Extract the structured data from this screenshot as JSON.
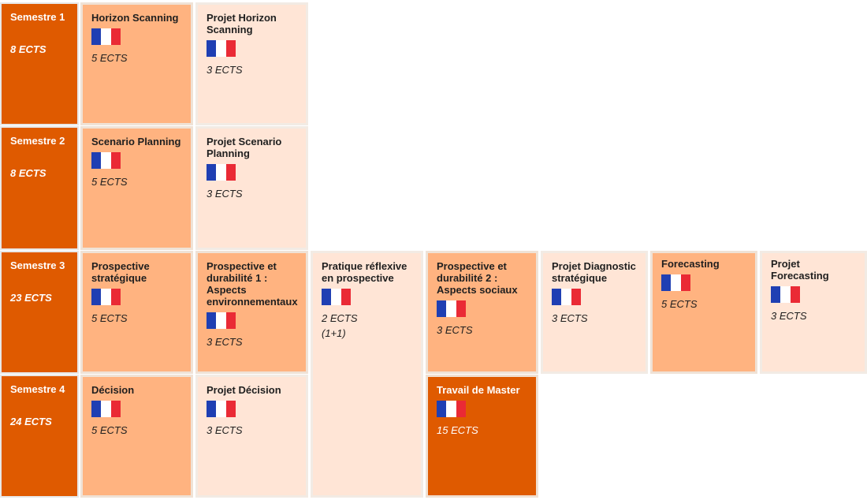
{
  "semesters": [
    {
      "title": "Semestre 1",
      "ects": "8 ECTS"
    },
    {
      "title": "Semestre 2",
      "ects": "8 ECTS"
    },
    {
      "title": "Semestre 3",
      "ects": "23 ECTS"
    },
    {
      "title": "Semestre 4",
      "ects": "24 ECTS"
    }
  ],
  "courses": {
    "horizon_scanning": {
      "title": "Horizon Scanning",
      "ects": "5 ECTS"
    },
    "projet_horizon_scanning": {
      "title": "Projet Horizon Scanning",
      "ects": "3 ECTS"
    },
    "scenario_planning": {
      "title": "Scenario Planning",
      "ects": "5 ECTS"
    },
    "projet_scenario_planning": {
      "title": "Projet Scenario Planning",
      "ects": "3 ECTS"
    },
    "prospective_strategique": {
      "title": "Prospective stratégique",
      "ects": "5 ECTS"
    },
    "prospective_durabilite_1": {
      "title": "Prospective et durabilité 1 : Aspects environnementaux",
      "ects": "3 ECTS"
    },
    "pratique_reflexive": {
      "title": "Pratique réflexive en prospective",
      "ects": "2 ECTS",
      "note": "(1+1)"
    },
    "prospective_durabilite_2": {
      "title": "Prospective et durabilité 2 : Aspects sociaux",
      "ects": "3 ECTS"
    },
    "projet_diagnostic": {
      "title": "Projet Diagnostic stratégique",
      "ects": "3 ECTS"
    },
    "forecasting": {
      "title": "Forecasting",
      "ects": "5 ECTS"
    },
    "projet_forecasting": {
      "title": "Projet Forecasting",
      "ects": "3 ECTS"
    },
    "decision": {
      "title": "Décision",
      "ects": "5 ECTS"
    },
    "projet_decision": {
      "title": "Projet Décision",
      "ects": "3 ECTS"
    },
    "travail_master": {
      "title": "Travail de Master",
      "ects": "15 ECTS"
    }
  },
  "flag_icon": "french-flag-icon",
  "colors": {
    "semester": "#df5a00",
    "course_primary": "#ffb380",
    "course_project": "#ffe5d6",
    "master": "#df5a00"
  }
}
